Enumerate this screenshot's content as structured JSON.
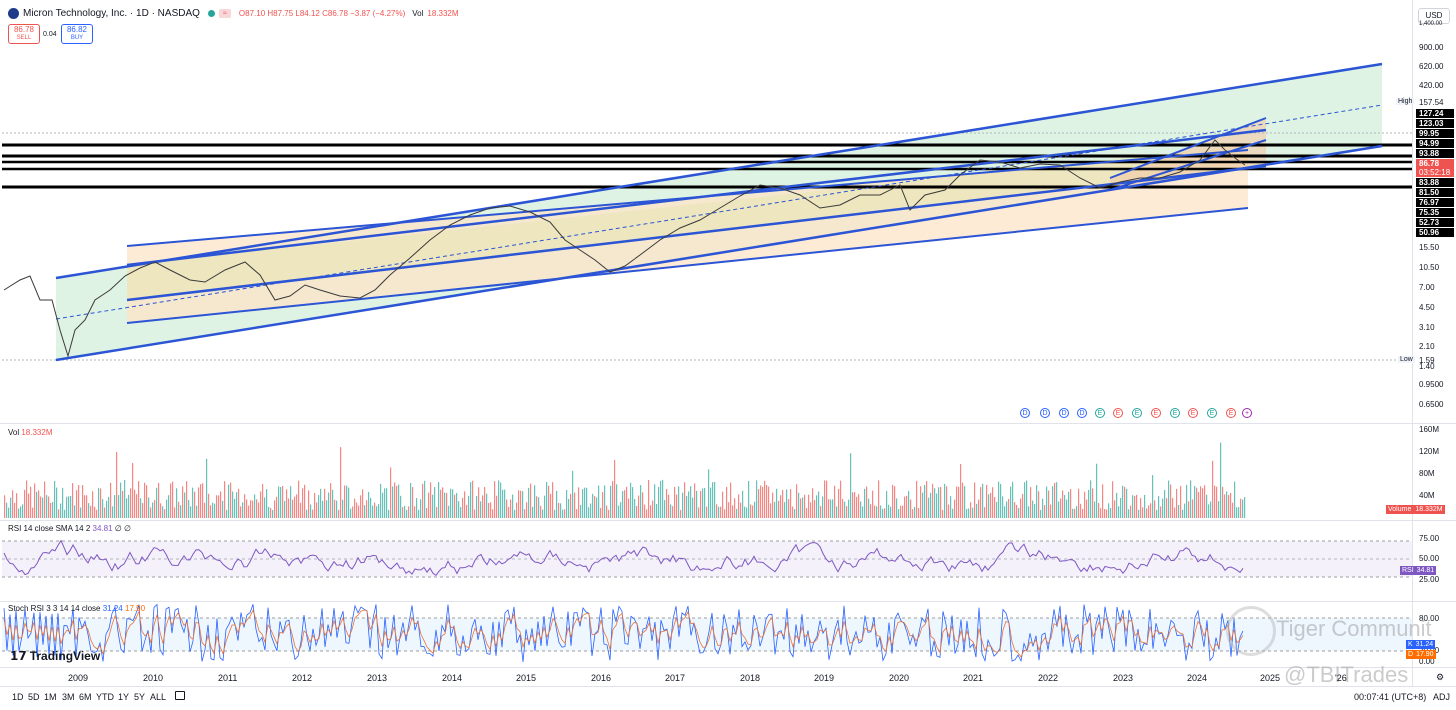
{
  "header": {
    "symbol_title": "Micron Technology, Inc. · 1D · NASDAQ",
    "ohlc": "O87.10 H87.75 L84.12 C86.78 −3.87 (−4.27%)",
    "vol_label": "Vol",
    "vol_value": "18.332M",
    "sell_price": "86.78",
    "sell_label": "SELL",
    "spread": "0.04",
    "buy_price": "86.82",
    "buy_label": "BUY",
    "currency": "USD"
  },
  "price_axis": {
    "labels": [
      "1,400.00",
      "900.00",
      "620.00",
      "420.00",
      "15.50",
      "10.50",
      "7.00",
      "4.50",
      "3.10",
      "2.10",
      "1.40",
      "0.9500",
      "0.6500"
    ],
    "high_label": "High",
    "high_value": "157.54",
    "low_label": "Low",
    "low_value": "1.59",
    "level_tags": [
      "127.24",
      "123.03",
      "99.95",
      "94.99",
      "93.88",
      "83.88",
      "81.50",
      "76.97",
      "75.35",
      "52.73",
      "50.96"
    ],
    "last_price": "86.78",
    "countdown": "03:52:18"
  },
  "events": [
    "D",
    "D",
    "D",
    "D",
    "E",
    "E",
    "E",
    "E",
    "E",
    "E",
    "E",
    "E",
    "+"
  ],
  "volume_pane": {
    "label": "Vol",
    "value": "18.332M",
    "axis": [
      "160M",
      "120M",
      "80M",
      "40M"
    ],
    "tag_label": "Volume",
    "tag_value": "18.332M"
  },
  "rsi_pane": {
    "label": "RSI 14 close SMA 14 2",
    "value": "34.81",
    "axis": [
      "75.00",
      "50.00",
      "25.00"
    ],
    "tag_label": "RSI",
    "tag_value": "34.81"
  },
  "stoch_pane": {
    "label": "Stoch RSI 3 3 14 14 close",
    "k_value": "31.24",
    "d_value": "17.90",
    "axis": [
      "80.00",
      "20.00",
      "0.00"
    ],
    "k_tag": "K",
    "d_tag": "D"
  },
  "time_axis": [
    "2009",
    "2010",
    "2011",
    "2012",
    "2013",
    "2014",
    "2015",
    "2016",
    "2017",
    "2018",
    "2019",
    "2020",
    "2021",
    "2022",
    "2023",
    "2024",
    "2025",
    "'26"
  ],
  "timeframes": [
    "1D",
    "5D",
    "1M",
    "3M",
    "6M",
    "YTD",
    "1Y",
    "5Y",
    "ALL"
  ],
  "status": {
    "clock": "00:07:41 (UTC+8)",
    "adj": "ADJ"
  },
  "branding": {
    "logo": "TradingView",
    "watermark": "Tiger Communit",
    "handle": "@TBITrades"
  },
  "colors": {
    "up": "#26a69a",
    "down": "#ef5350",
    "channel": "#2b55d5",
    "rsi": "#7e57c2",
    "stoch_k": "#2962ff",
    "stoch_d": "#ff6d00"
  },
  "chart_data": {
    "type": "line",
    "title": "Micron Technology, Inc. · 1D · NASDAQ",
    "scale": "log",
    "x": [
      "2009",
      "2010",
      "2011",
      "2012",
      "2013",
      "2014",
      "2015",
      "2016",
      "2017",
      "2018",
      "2019",
      "2020",
      "2021",
      "2022",
      "2023",
      "2024",
      "2025"
    ],
    "series": [
      {
        "values": [
          2.1,
          8.5,
          8.0,
          6.0,
          9.5,
          25.0,
          30.0,
          12.0,
          22.0,
          45.0,
          38.0,
          48.0,
          80.0,
          70.0,
          52.0,
          92.0,
          86.78
        ]
      }
    ],
    "support_resistance_levels": [
      123.03,
      99.95,
      94.99,
      93.88,
      83.88,
      81.5,
      76.97,
      75.35
    ],
    "ylim": [
      0.6,
      1400
    ],
    "grid": true
  }
}
